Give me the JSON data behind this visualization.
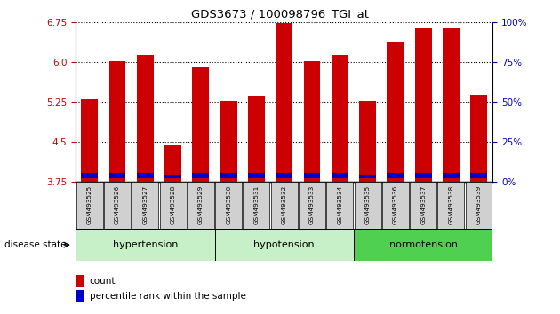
{
  "title": "GDS3673 / 100098796_TGI_at",
  "samples": [
    "GSM493525",
    "GSM493526",
    "GSM493527",
    "GSM493528",
    "GSM493529",
    "GSM493530",
    "GSM493531",
    "GSM493532",
    "GSM493533",
    "GSM493534",
    "GSM493535",
    "GSM493536",
    "GSM493537",
    "GSM493538",
    "GSM493539"
  ],
  "red_values": [
    5.3,
    6.02,
    6.13,
    4.43,
    5.92,
    5.27,
    5.37,
    6.73,
    6.02,
    6.13,
    5.27,
    6.38,
    6.63,
    6.63,
    5.38
  ],
  "blue_heights": [
    0.1,
    0.1,
    0.1,
    0.07,
    0.1,
    0.1,
    0.1,
    0.1,
    0.1,
    0.1,
    0.07,
    0.1,
    0.1,
    0.1,
    0.1
  ],
  "ymin": 3.75,
  "ymax": 6.75,
  "yticks": [
    3.75,
    4.5,
    5.25,
    6.0,
    6.75
  ],
  "y2ticks": [
    0,
    25,
    50,
    75,
    100
  ],
  "groups": [
    {
      "label": "hypertension",
      "start": 0,
      "end": 5
    },
    {
      "label": "hypotension",
      "start": 5,
      "end": 10
    },
    {
      "label": "normotension",
      "start": 10,
      "end": 15
    }
  ],
  "group_colors": [
    "#c8f0c8",
    "#c8f0c8",
    "#50d050"
  ],
  "bar_color": "#cc0000",
  "blue_color": "#0000cc",
  "tick_color_left": "#cc0000",
  "tick_color_right": "#0000bb",
  "disease_state_label": "disease state",
  "legend_count": "count",
  "legend_percentile": "percentile rank within the sample"
}
